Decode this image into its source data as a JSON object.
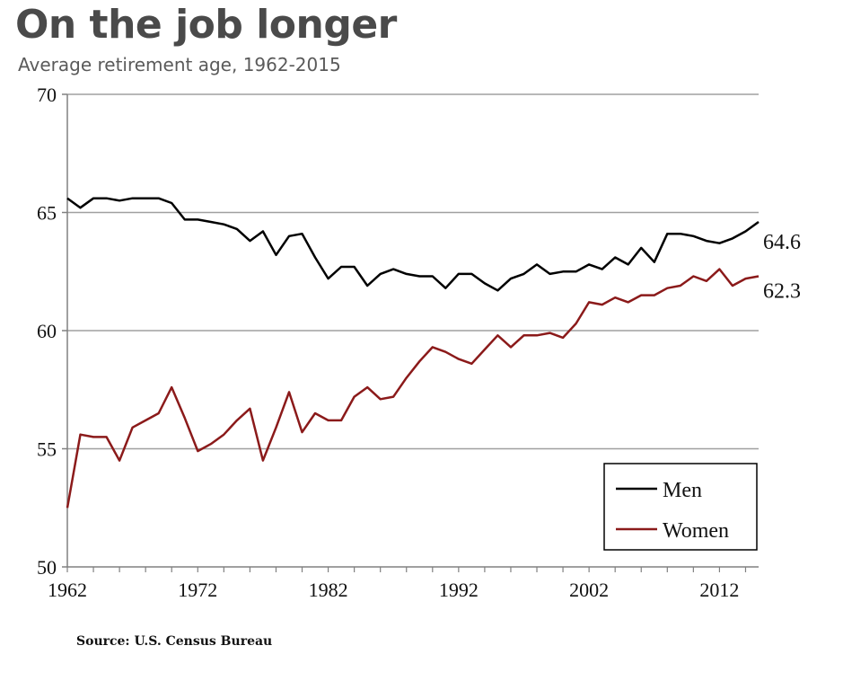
{
  "header": {
    "title": "On the job longer",
    "subtitle": "Average retirement age, 1962-2015"
  },
  "footer": {
    "source": "Source: U.S. Census Bureau"
  },
  "chart_data": {
    "type": "line",
    "title": "On the job longer",
    "subtitle": "Average retirement age, 1962-2015",
    "xlabel": "",
    "ylabel": "",
    "xlim": [
      1962,
      2015
    ],
    "ylim": [
      50,
      70
    ],
    "x_ticks": [
      1962,
      1972,
      1982,
      1992,
      2002,
      2012
    ],
    "y_ticks": [
      50,
      55,
      60,
      65,
      70
    ],
    "grid": "horizontal",
    "legend": {
      "placement": "bottom-right",
      "boxed": true
    },
    "x": [
      1962,
      1963,
      1964,
      1965,
      1966,
      1967,
      1968,
      1969,
      1970,
      1971,
      1972,
      1973,
      1974,
      1975,
      1976,
      1977,
      1978,
      1979,
      1980,
      1981,
      1982,
      1983,
      1984,
      1985,
      1986,
      1987,
      1988,
      1989,
      1990,
      1991,
      1992,
      1993,
      1994,
      1995,
      1996,
      1997,
      1998,
      1999,
      2000,
      2001,
      2002,
      2003,
      2004,
      2005,
      2006,
      2007,
      2008,
      2009,
      2010,
      2011,
      2012,
      2013,
      2014,
      2015
    ],
    "series": [
      {
        "name": "Men",
        "color": "#000000",
        "end_label": "64.6",
        "values": [
          65.6,
          65.2,
          65.6,
          65.6,
          65.5,
          65.6,
          65.6,
          65.6,
          65.4,
          64.7,
          64.7,
          64.6,
          64.5,
          64.3,
          63.8,
          64.2,
          63.2,
          64.0,
          64.1,
          63.1,
          62.2,
          62.7,
          62.7,
          61.9,
          62.4,
          62.6,
          62.4,
          62.3,
          62.3,
          61.8,
          62.4,
          62.4,
          62.0,
          61.7,
          62.2,
          62.4,
          62.8,
          62.4,
          62.5,
          62.5,
          62.8,
          62.6,
          63.1,
          62.8,
          63.5,
          62.9,
          64.1,
          64.1,
          64.0,
          63.8,
          63.7,
          63.9,
          64.2,
          64.6
        ]
      },
      {
        "name": "Women",
        "color": "#8b1a1a",
        "end_label": "62.3",
        "values": [
          52.5,
          55.6,
          55.5,
          55.5,
          54.5,
          55.9,
          56.2,
          56.5,
          57.6,
          56.3,
          54.9,
          55.2,
          55.6,
          56.2,
          56.7,
          54.5,
          55.9,
          57.4,
          55.7,
          56.5,
          56.2,
          56.2,
          57.2,
          57.6,
          57.1,
          57.2,
          58.0,
          58.7,
          59.3,
          59.1,
          58.8,
          58.6,
          59.2,
          59.8,
          59.3,
          59.8,
          59.8,
          59.9,
          59.7,
          60.3,
          61.2,
          61.1,
          61.4,
          61.2,
          61.5,
          61.5,
          61.8,
          61.9,
          62.3,
          62.1,
          62.6,
          61.9,
          62.2,
          62.3
        ]
      }
    ]
  }
}
